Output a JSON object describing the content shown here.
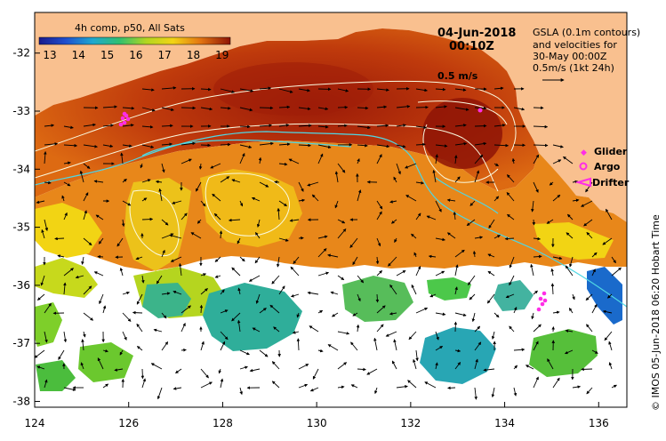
{
  "colorbar": {
    "title": "4h comp, p50, All Sats",
    "ticks": [
      "13",
      "14",
      "15",
      "16",
      "17",
      "18",
      "19"
    ]
  },
  "timestamp": {
    "date": "04-Jun-2018",
    "time": "00:10Z"
  },
  "info": {
    "line1": "GSLA (0.1m contours)",
    "line2": "and velocities for",
    "line3": "30-May 00:00Z",
    "line4": "0.5m/s (1kt 24h)"
  },
  "speed_label": "0.5 m/s",
  "legend": {
    "glider": "Glider",
    "argo": "Argo",
    "drifter": "Drifter"
  },
  "credit": "© IMOS 05-Jun-2018 06:20 Hobart Time",
  "axes": {
    "x_ticks": [
      "124",
      "126",
      "128",
      "130",
      "132",
      "134",
      "136"
    ],
    "y_ticks": [
      "-32",
      "-33",
      "-34",
      "-35",
      "-36",
      "-37",
      "-38"
    ]
  },
  "colors": {
    "land": "#f9c08f",
    "no_data": "#ffffff",
    "sst_warm": "#a8250a",
    "sst_mid": "#e07a10",
    "sst_cool": "#f2d414",
    "sst_cold": "#2fae9a",
    "contour": "#fafae0",
    "current": "#4fd7e4",
    "marker": "#ff2de6"
  }
}
